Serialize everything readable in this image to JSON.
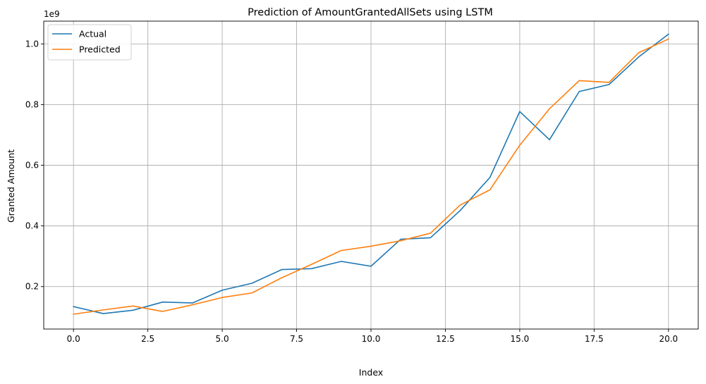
{
  "chart_data": {
    "type": "line",
    "title": "Prediction of AmountGrantedAllSets using LSTM",
    "xlabel": "Index",
    "ylabel": "Granted Amount",
    "y_scale_label": "1e9",
    "x": [
      0,
      1,
      2,
      3,
      4,
      5,
      6,
      7,
      8,
      9,
      10,
      11,
      12,
      13,
      14,
      15,
      16,
      17,
      18,
      19,
      20
    ],
    "xlim": [
      -1,
      21
    ],
    "ylim": [
      0.06,
      1.075
    ],
    "x_ticks": [
      0.0,
      2.5,
      5.0,
      7.5,
      10.0,
      12.5,
      15.0,
      17.5,
      20.0
    ],
    "x_tick_labels": [
      "0.0",
      "2.5",
      "5.0",
      "7.5",
      "10.0",
      "12.5",
      "15.0",
      "17.5",
      "20.0"
    ],
    "y_ticks": [
      0.2,
      0.4,
      0.6,
      0.8,
      1.0
    ],
    "y_tick_labels": [
      "0.2",
      "0.4",
      "0.6",
      "0.8",
      "1.0"
    ],
    "grid": true,
    "legend_position": "top-left",
    "series": [
      {
        "name": "Actual",
        "color": "#1f77b4",
        "values": [
          0.134,
          0.111,
          0.122,
          0.149,
          0.146,
          0.188,
          0.211,
          0.256,
          0.259,
          0.283,
          0.267,
          0.356,
          0.361,
          0.451,
          0.56,
          0.777,
          0.684,
          0.843,
          0.866,
          0.957,
          1.032
        ]
      },
      {
        "name": "Predicted",
        "color": "#ff7f0e",
        "values": [
          0.109,
          0.123,
          0.136,
          0.118,
          0.14,
          0.164,
          0.179,
          0.229,
          0.273,
          0.319,
          0.333,
          0.351,
          0.376,
          0.469,
          0.519,
          0.666,
          0.786,
          0.879,
          0.873,
          0.971,
          1.016
        ]
      }
    ]
  }
}
